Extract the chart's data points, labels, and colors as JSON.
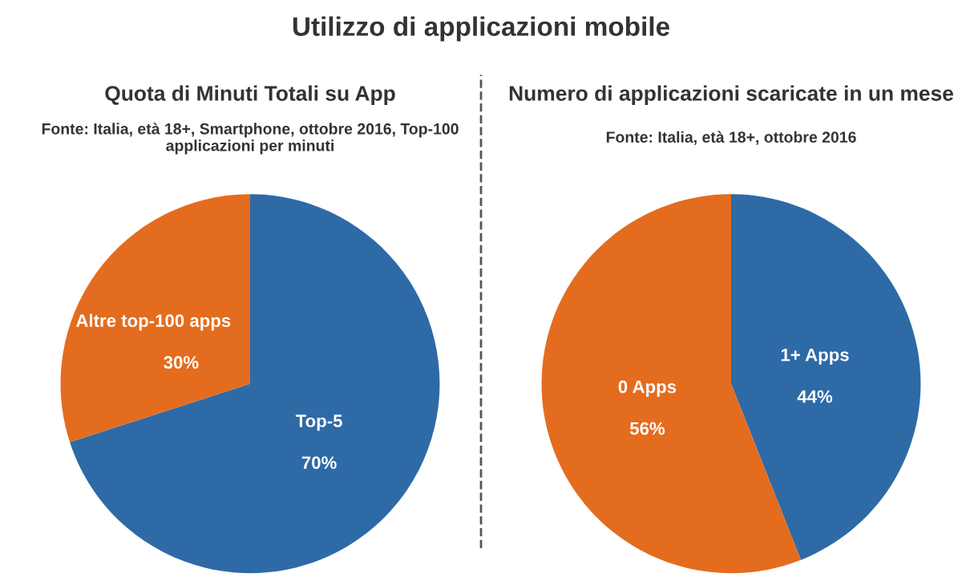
{
  "chart_data": [
    {
      "type": "pie",
      "title": "Quota di Minuti Totali su App",
      "subtitle": "Fonte: Italia, età 18+, Smartphone, ottobre 2016, Top-100 applicazioni per minuti",
      "annotations": [
        "Utilizzo di applicazioni mobile"
      ],
      "categories": [
        "Top-5",
        "Altre top-100 apps"
      ],
      "values": [
        70,
        30
      ],
      "value_labels": [
        "70%",
        "30%"
      ],
      "colors": [
        "#2e6aa6",
        "#e46c1e"
      ]
    },
    {
      "type": "pie",
      "title": "Numero di applicazioni scaricate in un mese",
      "subtitle": "Fonte: Italia, età 18+, ottobre 2016",
      "categories": [
        "1+ Apps",
        "0 Apps"
      ],
      "values": [
        44,
        56
      ],
      "value_labels": [
        "44%",
        "56%"
      ],
      "colors": [
        "#2e6aa6",
        "#e46c1e"
      ]
    }
  ]
}
